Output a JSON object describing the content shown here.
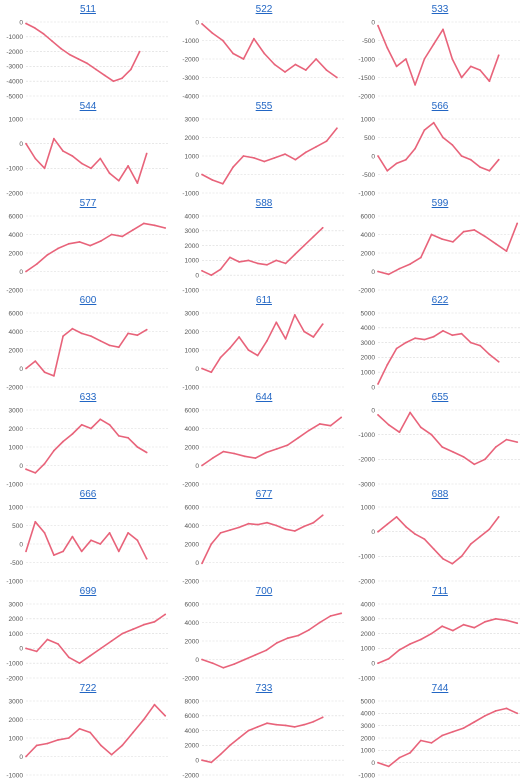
{
  "line_color": "#e8637a",
  "link_color": "#2266c4",
  "grid_color": "#d9d9d9",
  "chart_data": [
    {
      "type": "line",
      "title": "511",
      "ylim": [
        -5000,
        0
      ],
      "yticks": [
        "0",
        "-1000",
        "-2000",
        "-3000",
        "-4000",
        "-5000"
      ],
      "y": [
        -100,
        -400,
        -800,
        -1300,
        -1800,
        -2200,
        -2500,
        -2800,
        -3200,
        -3600,
        -4000,
        -3800,
        -3200,
        -2000
      ],
      "x_end": 0.8
    },
    {
      "type": "line",
      "title": "522",
      "ylim": [
        -4000,
        0
      ],
      "yticks": [
        "0",
        "-1000",
        "-2000",
        "-3000",
        "-4000"
      ],
      "y": [
        -100,
        -600,
        -1000,
        -1700,
        -2000,
        -900,
        -1700,
        -2300,
        -2700,
        -2300,
        -2600,
        -2000,
        -2600,
        -3000
      ],
      "x_end": 0.95
    },
    {
      "type": "line",
      "title": "533",
      "ylim": [
        -2000,
        0
      ],
      "yticks": [
        "0",
        "-500",
        "-1000",
        "-1500",
        "-2000"
      ],
      "y": [
        -100,
        -700,
        -1200,
        -1000,
        -1700,
        -1000,
        -600,
        -200,
        -1000,
        -1500,
        -1200,
        -1300,
        -1600,
        -900
      ],
      "x_end": 0.85
    },
    {
      "type": "line",
      "title": "544",
      "ylim": [
        -2000,
        1000
      ],
      "yticks": [
        "1000",
        "0",
        "-1000",
        "-2000"
      ],
      "y": [
        0,
        -600,
        -1000,
        200,
        -300,
        -500,
        -800,
        -1000,
        -600,
        -1200,
        -1500,
        -900,
        -1600,
        -400
      ],
      "x_end": 0.85
    },
    {
      "type": "line",
      "title": "555",
      "ylim": [
        -1000,
        3000
      ],
      "yticks": [
        "3000",
        "2000",
        "1000",
        "0",
        "-1000"
      ],
      "y": [
        0,
        -300,
        -500,
        400,
        1000,
        900,
        700,
        900,
        1100,
        800,
        1200,
        1500,
        1800,
        2500
      ],
      "x_end": 0.95
    },
    {
      "type": "line",
      "title": "566",
      "ylim": [
        -1000,
        1000
      ],
      "yticks": [
        "1000",
        "500",
        "0",
        "-500",
        "-1000"
      ],
      "y": [
        0,
        -400,
        -200,
        -100,
        200,
        700,
        900,
        500,
        300,
        0,
        -100,
        -300,
        -400,
        -100
      ],
      "x_end": 0.85
    },
    {
      "type": "line",
      "title": "577",
      "ylim": [
        -2000,
        6000
      ],
      "yticks": [
        "6000",
        "4000",
        "2000",
        "0",
        "-2000"
      ],
      "y": [
        0,
        800,
        1800,
        2500,
        3000,
        3200,
        2800,
        3300,
        4000,
        3800,
        4500,
        5200,
        5000,
        4700
      ],
      "x_end": 0.98
    },
    {
      "type": "line",
      "title": "588",
      "ylim": [
        -1000,
        4000
      ],
      "yticks": [
        "4000",
        "3000",
        "2000",
        "1000",
        "0",
        "-1000"
      ],
      "y": [
        300,
        0,
        400,
        1200,
        900,
        1000,
        800,
        700,
        1000,
        800,
        1400,
        2000,
        2600,
        3200
      ],
      "x_end": 0.85
    },
    {
      "type": "line",
      "title": "599",
      "ylim": [
        -2000,
        6000
      ],
      "yticks": [
        "6000",
        "4000",
        "2000",
        "0",
        "-2000"
      ],
      "y": [
        0,
        -300,
        300,
        800,
        1500,
        4000,
        3500,
        3200,
        4300,
        4500,
        3800,
        3000,
        2200,
        5200
      ],
      "x_end": 0.98
    },
    {
      "type": "line",
      "title": "600",
      "ylim": [
        -2000,
        6000
      ],
      "yticks": [
        "6000",
        "4000",
        "2000",
        "0",
        "-2000"
      ],
      "y": [
        0,
        800,
        -400,
        -800,
        3500,
        4300,
        3800,
        3500,
        3000,
        2500,
        2300,
        3800,
        3600,
        4200
      ],
      "x_end": 0.85
    },
    {
      "type": "line",
      "title": "611",
      "ylim": [
        -1000,
        3000
      ],
      "yticks": [
        "3000",
        "2000",
        "1000",
        "0",
        "-1000"
      ],
      "y": [
        0,
        -200,
        600,
        1100,
        1700,
        1000,
        700,
        1500,
        2500,
        1600,
        2900,
        2000,
        1700,
        2400
      ],
      "x_end": 0.85
    },
    {
      "type": "line",
      "title": "622",
      "ylim": [
        0,
        5000
      ],
      "yticks": [
        "5000",
        "4000",
        "3000",
        "2000",
        "1000",
        "0"
      ],
      "y": [
        200,
        1500,
        2600,
        3000,
        3300,
        3200,
        3400,
        3800,
        3500,
        3600,
        3000,
        2800,
        2200,
        1700
      ],
      "x_end": 0.85
    },
    {
      "type": "line",
      "title": "633",
      "ylim": [
        -1000,
        3000
      ],
      "yticks": [
        "3000",
        "2000",
        "1000",
        "0",
        "-1000"
      ],
      "y": [
        -200,
        -400,
        100,
        800,
        1300,
        1700,
        2200,
        2000,
        2500,
        2200,
        1600,
        1500,
        1000,
        700
      ],
      "x_end": 0.85
    },
    {
      "type": "line",
      "title": "644",
      "ylim": [
        -2000,
        6000
      ],
      "yticks": [
        "6000",
        "4000",
        "2000",
        "0",
        "-2000"
      ],
      "y": [
        0,
        800,
        1500,
        1300,
        1000,
        800,
        1400,
        1800,
        2200,
        3000,
        3800,
        4500,
        4300,
        5200
      ],
      "x_end": 0.98
    },
    {
      "type": "line",
      "title": "655",
      "ylim": [
        -3000,
        0
      ],
      "yticks": [
        "0",
        "-1000",
        "-2000",
        "-3000"
      ],
      "y": [
        -200,
        -600,
        -900,
        -100,
        -700,
        -1000,
        -1500,
        -1700,
        -1900,
        -2200,
        -2000,
        -1500,
        -1200,
        -1300
      ],
      "x_end": 0.98
    },
    {
      "type": "line",
      "title": "666",
      "ylim": [
        -1000,
        1000
      ],
      "yticks": [
        "1000",
        "500",
        "0",
        "-500",
        "-1000"
      ],
      "y": [
        -200,
        600,
        300,
        -300,
        -200,
        200,
        -200,
        100,
        0,
        300,
        -200,
        300,
        100,
        -400
      ],
      "x_end": 0.85
    },
    {
      "type": "line",
      "title": "677",
      "ylim": [
        -2000,
        6000
      ],
      "yticks": [
        "6000",
        "4000",
        "2000",
        "0",
        "-2000"
      ],
      "y": [
        -100,
        2000,
        3200,
        3500,
        3800,
        4200,
        4100,
        4300,
        4000,
        3600,
        3400,
        3900,
        4300,
        5100
      ],
      "x_end": 0.85
    },
    {
      "type": "line",
      "title": "688",
      "ylim": [
        -2000,
        1000
      ],
      "yticks": [
        "1000",
        "0",
        "-1000",
        "-2000"
      ],
      "y": [
        0,
        300,
        600,
        200,
        -100,
        -300,
        -700,
        -1100,
        -1300,
        -1000,
        -500,
        -200,
        100,
        600
      ],
      "x_end": 0.85
    },
    {
      "type": "line",
      "title": "699",
      "ylim": [
        -2000,
        3000
      ],
      "yticks": [
        "3000",
        "2000",
        "1000",
        "0",
        "-1000",
        "-2000"
      ],
      "y": [
        0,
        -200,
        600,
        300,
        -600,
        -1000,
        -500,
        0,
        500,
        1000,
        1300,
        1600,
        1800,
        2300
      ],
      "x_end": 0.98
    },
    {
      "type": "line",
      "title": "700",
      "ylim": [
        -2000,
        6000
      ],
      "yticks": [
        "6000",
        "4000",
        "2000",
        "0",
        "-2000"
      ],
      "y": [
        0,
        -400,
        -900,
        -500,
        0,
        500,
        1000,
        1800,
        2300,
        2600,
        3200,
        4000,
        4700,
        5000
      ],
      "x_end": 0.98
    },
    {
      "type": "line",
      "title": "711",
      "ylim": [
        -1000,
        4000
      ],
      "yticks": [
        "4000",
        "3000",
        "2000",
        "1000",
        "0",
        "-1000"
      ],
      "y": [
        0,
        300,
        900,
        1300,
        1600,
        2000,
        2500,
        2200,
        2600,
        2400,
        2800,
        3000,
        2900,
        2700
      ],
      "x_end": 0.98
    },
    {
      "type": "line",
      "title": "722",
      "ylim": [
        -1000,
        3000
      ],
      "yticks": [
        "3000",
        "2000",
        "1000",
        "0",
        "-1000"
      ],
      "y": [
        0,
        600,
        700,
        900,
        1000,
        1500,
        1300,
        600,
        100,
        600,
        1300,
        2000,
        2800,
        2200
      ],
      "x_end": 0.98
    },
    {
      "type": "line",
      "title": "733",
      "ylim": [
        -2000,
        8000
      ],
      "yticks": [
        "8000",
        "6000",
        "4000",
        "2000",
        "0",
        "-2000"
      ],
      "y": [
        0,
        -300,
        800,
        2000,
        3000,
        4000,
        4500,
        5000,
        4800,
        4700,
        4500,
        4800,
        5200,
        5800
      ],
      "x_end": 0.85
    },
    {
      "type": "line",
      "title": "744",
      "ylim": [
        -1000,
        5000
      ],
      "yticks": [
        "5000",
        "4000",
        "3000",
        "2000",
        "1000",
        "0",
        "-1000"
      ],
      "y": [
        0,
        -300,
        400,
        800,
        1800,
        1600,
        2200,
        2500,
        2800,
        3300,
        3800,
        4200,
        4400,
        4000
      ],
      "x_end": 0.98
    }
  ]
}
